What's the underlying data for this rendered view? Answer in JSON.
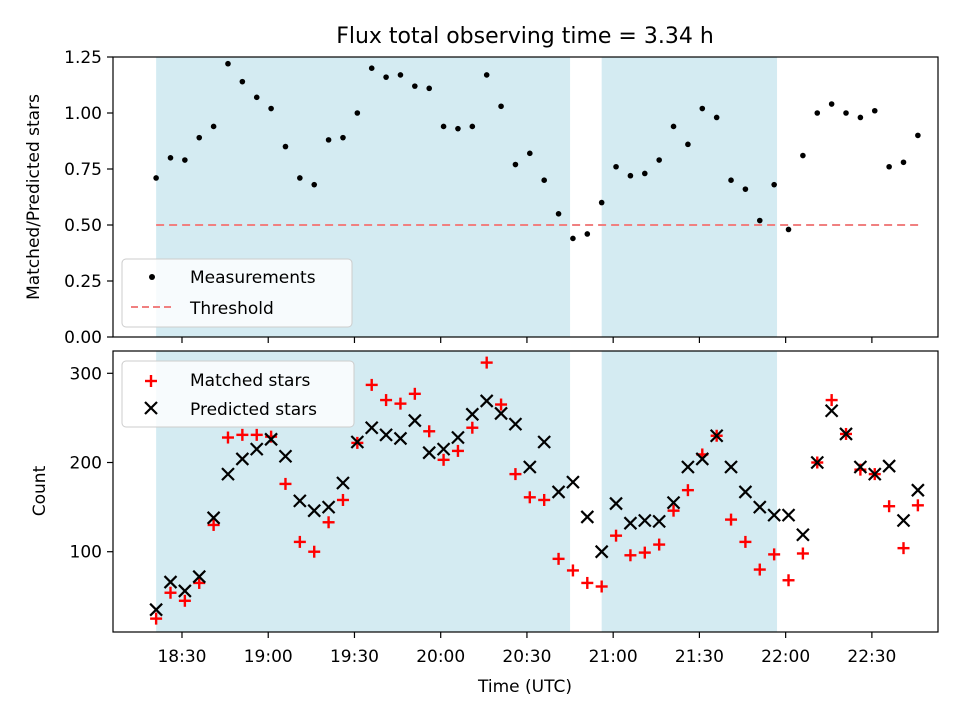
{
  "title": "Flux total observing time = 3.34 h",
  "chart_data": [
    {
      "type": "scatter",
      "ylabel": "Matched/Predicted stars",
      "ylim": [
        0.0,
        1.25
      ],
      "yticks": [
        "0.00",
        "0.25",
        "0.50",
        "0.75",
        "1.00",
        "1.25"
      ],
      "legend": {
        "placement": "lower-left",
        "entries": [
          "Measurements",
          "Threshold"
        ]
      },
      "threshold": {
        "value": 0.5,
        "color": "#f08080",
        "style": "dashed",
        "x_range": [
          "18:21",
          "22:47"
        ]
      },
      "shaded_intervals": [
        [
          "18:21",
          "20:45"
        ],
        [
          "20:56",
          "21:57"
        ]
      ],
      "series": [
        {
          "name": "Measurements",
          "color": "#000000",
          "x": [
            "18:21",
            "18:26",
            "18:31",
            "18:36",
            "18:41",
            "18:46",
            "18:51",
            "18:56",
            "19:01",
            "19:06",
            "19:11",
            "19:16",
            "19:21",
            "19:26",
            "19:31",
            "19:36",
            "19:41",
            "19:46",
            "19:51",
            "19:56",
            "20:01",
            "20:06",
            "20:11",
            "20:16",
            "20:21",
            "20:26",
            "20:31",
            "20:36",
            "20:41",
            "20:46",
            "20:51",
            "20:56",
            "21:01",
            "21:06",
            "21:11",
            "21:16",
            "21:21",
            "21:26",
            "21:31",
            "21:36",
            "21:41",
            "21:46",
            "21:51",
            "21:56",
            "22:01",
            "22:06",
            "22:11",
            "22:16",
            "22:21",
            "22:26",
            "22:31",
            "22:36",
            "22:41",
            "22:46"
          ],
          "y": [
            0.71,
            0.8,
            0.79,
            0.89,
            0.94,
            1.22,
            1.14,
            1.07,
            1.02,
            0.85,
            0.71,
            0.68,
            0.88,
            0.89,
            1.0,
            1.2,
            1.16,
            1.17,
            1.12,
            1.11,
            0.94,
            0.93,
            0.94,
            1.17,
            1.03,
            0.77,
            0.82,
            0.7,
            0.55,
            0.44,
            0.46,
            0.6,
            0.76,
            0.72,
            0.73,
            0.79,
            0.94,
            0.86,
            1.02,
            0.98,
            0.7,
            0.66,
            0.52,
            0.68,
            0.48,
            0.81,
            1.0,
            1.04,
            1.0,
            0.98,
            1.01,
            0.76,
            0.78,
            0.9
          ]
        }
      ]
    },
    {
      "type": "scatter",
      "xlabel": "Time (UTC)",
      "ylabel": "Count",
      "ylim": [
        10,
        325
      ],
      "yticks": [
        "100",
        "200",
        "300"
      ],
      "xticks": [
        "18:30",
        "19:00",
        "19:30",
        "20:00",
        "20:30",
        "21:00",
        "21:30",
        "22:00",
        "22:30"
      ],
      "legend": {
        "placement": "top-left",
        "entries": [
          "Matched stars",
          "Predicted stars"
        ]
      },
      "shaded_intervals": [
        [
          "18:21",
          "20:45"
        ],
        [
          "20:56",
          "21:57"
        ]
      ],
      "series": [
        {
          "name": "Matched stars",
          "color": "#ff0000",
          "marker": "plus",
          "x": [
            "18:21",
            "18:26",
            "18:31",
            "18:36",
            "18:41",
            "18:46",
            "18:51",
            "18:56",
            "19:01",
            "19:06",
            "19:11",
            "19:16",
            "19:21",
            "19:26",
            "19:31",
            "19:36",
            "19:41",
            "19:46",
            "19:51",
            "19:56",
            "20:01",
            "20:06",
            "20:11",
            "20:16",
            "20:21",
            "20:26",
            "20:31",
            "20:36",
            "20:41",
            "20:46",
            "20:51",
            "20:56",
            "21:01",
            "21:06",
            "21:11",
            "21:16",
            "21:21",
            "21:26",
            "21:31",
            "21:36",
            "21:41",
            "21:46",
            "21:51",
            "21:56",
            "22:01",
            "22:06",
            "22:11",
            "22:16",
            "22:21",
            "22:26",
            "22:31",
            "22:36",
            "22:41",
            "22:46"
          ],
          "y": [
            25,
            54,
            45,
            65,
            130,
            228,
            231,
            231,
            229,
            176,
            111,
            100,
            133,
            158,
            222,
            287,
            270,
            266,
            277,
            235,
            203,
            213,
            239,
            312,
            265,
            187,
            161,
            158,
            92,
            79,
            65,
            61,
            118,
            96,
            99,
            108,
            146,
            169,
            209,
            230,
            136,
            111,
            80,
            97,
            68,
            98,
            200,
            270,
            232,
            192,
            187,
            151,
            104,
            152
          ]
        },
        {
          "name": "Predicted stars",
          "color": "#000000",
          "marker": "x",
          "x": [
            "18:21",
            "18:26",
            "18:31",
            "18:36",
            "18:41",
            "18:46",
            "18:51",
            "18:56",
            "19:01",
            "19:06",
            "19:11",
            "19:16",
            "19:21",
            "19:26",
            "19:31",
            "19:36",
            "19:41",
            "19:46",
            "19:51",
            "19:56",
            "20:01",
            "20:06",
            "20:11",
            "20:16",
            "20:21",
            "20:26",
            "20:31",
            "20:36",
            "20:41",
            "20:46",
            "20:51",
            "20:56",
            "21:01",
            "21:06",
            "21:11",
            "21:16",
            "21:21",
            "21:26",
            "21:31",
            "21:36",
            "21:41",
            "21:46",
            "21:51",
            "21:56",
            "22:01",
            "22:06",
            "22:11",
            "22:16",
            "22:21",
            "22:26",
            "22:31",
            "22:36",
            "22:41",
            "22:46"
          ],
          "y": [
            35,
            66,
            56,
            72,
            138,
            187,
            204,
            215,
            226,
            207,
            157,
            146,
            150,
            177,
            223,
            239,
            231,
            227,
            247,
            211,
            215,
            228,
            254,
            269,
            255,
            243,
            195,
            223,
            167,
            178,
            139,
            100,
            154,
            132,
            135,
            134,
            155,
            195,
            204,
            230,
            195,
            167,
            150,
            141,
            141,
            119,
            200,
            258,
            232,
            195,
            187,
            196,
            135,
            169
          ]
        }
      ]
    }
  ]
}
